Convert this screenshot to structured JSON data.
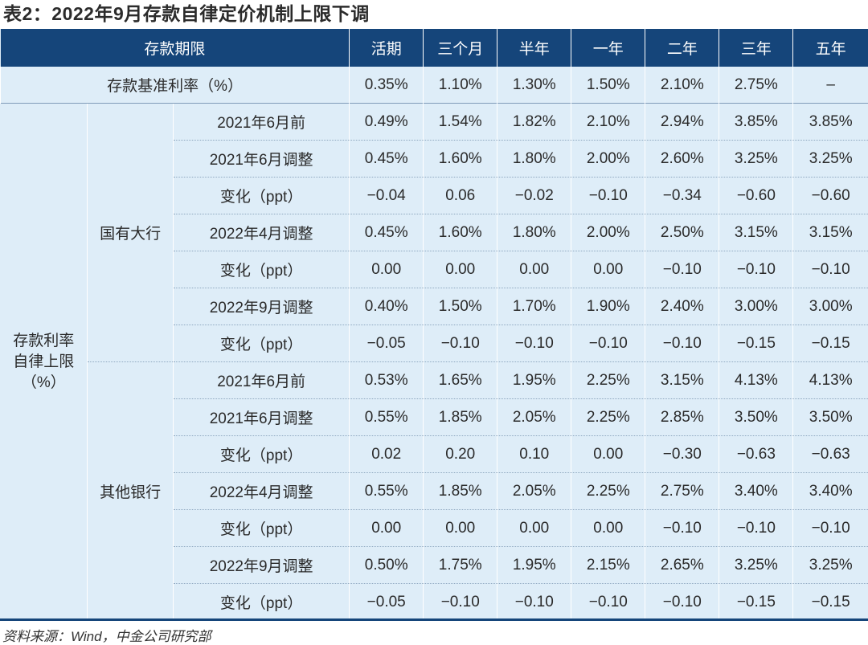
{
  "title": "表2：2022年9月存款自律定价机制上限下调",
  "header": {
    "label": "存款期限",
    "terms": [
      "活期",
      "三个月",
      "半年",
      "一年",
      "二年",
      "三年",
      "五年"
    ]
  },
  "base_rate": {
    "label": "存款基准利率（%）",
    "values": [
      "0.35%",
      "1.10%",
      "1.30%",
      "1.50%",
      "2.10%",
      "2.75%",
      "–"
    ]
  },
  "group_label": [
    "存款利率",
    "自律上限",
    "（%）"
  ],
  "banks": [
    {
      "name": "国有大行",
      "rows": [
        {
          "label": "2021年6月前",
          "values": [
            "0.49%",
            "1.54%",
            "1.82%",
            "2.10%",
            "2.94%",
            "3.85%",
            "3.85%"
          ]
        },
        {
          "label": "2021年6月调整",
          "values": [
            "0.45%",
            "1.60%",
            "1.80%",
            "2.00%",
            "2.60%",
            "3.25%",
            "3.25%"
          ]
        },
        {
          "label": "变化（ppt）",
          "values": [
            "−0.04",
            "0.06",
            "−0.02",
            "−0.10",
            "−0.34",
            "−0.60",
            "−0.60"
          ]
        },
        {
          "label": "2022年4月调整",
          "values": [
            "0.45%",
            "1.60%",
            "1.80%",
            "2.00%",
            "2.50%",
            "3.15%",
            "3.15%"
          ]
        },
        {
          "label": "变化（ppt）",
          "values": [
            "0.00",
            "0.00",
            "0.00",
            "0.00",
            "−0.10",
            "−0.10",
            "−0.10"
          ]
        },
        {
          "label": "2022年9月调整",
          "values": [
            "0.40%",
            "1.50%",
            "1.70%",
            "1.90%",
            "2.40%",
            "3.00%",
            "3.00%"
          ]
        },
        {
          "label": "变化（ppt）",
          "values": [
            "−0.05",
            "−0.10",
            "−0.10",
            "−0.10",
            "−0.10",
            "−0.15",
            "−0.15"
          ]
        }
      ]
    },
    {
      "name": "其他银行",
      "rows": [
        {
          "label": "2021年6月前",
          "values": [
            "0.53%",
            "1.65%",
            "1.95%",
            "2.25%",
            "3.15%",
            "4.13%",
            "4.13%"
          ]
        },
        {
          "label": "2021年6月调整",
          "values": [
            "0.55%",
            "1.85%",
            "2.05%",
            "2.25%",
            "2.85%",
            "3.50%",
            "3.50%"
          ]
        },
        {
          "label": "变化（ppt）",
          "values": [
            "0.02",
            "0.20",
            "0.10",
            "0.00",
            "−0.30",
            "−0.63",
            "−0.63"
          ]
        },
        {
          "label": "2022年4月调整",
          "values": [
            "0.55%",
            "1.85%",
            "2.05%",
            "2.25%",
            "2.75%",
            "3.40%",
            "3.40%"
          ]
        },
        {
          "label": "变化（ppt）",
          "values": [
            "0.00",
            "0.00",
            "0.00",
            "0.00",
            "−0.10",
            "−0.10",
            "−0.10"
          ]
        },
        {
          "label": "2022年9月调整",
          "values": [
            "0.50%",
            "1.75%",
            "1.95%",
            "2.15%",
            "2.65%",
            "3.25%",
            "3.25%"
          ]
        },
        {
          "label": "变化（ppt）",
          "values": [
            "−0.05",
            "−0.10",
            "−0.10",
            "−0.10",
            "−0.10",
            "−0.15",
            "−0.15"
          ]
        }
      ]
    }
  ],
  "source": "资料来源：Wind，中金公司研究部",
  "colors": {
    "header_bg": "#15457a",
    "body_bg": "#deedf8"
  }
}
